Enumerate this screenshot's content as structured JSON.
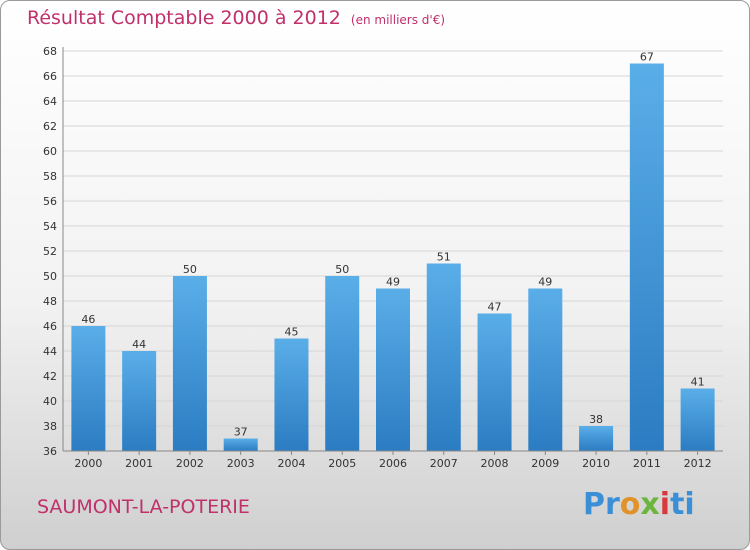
{
  "title": "Résultat Comptable 2000 à 2012",
  "subtitle": "(en milliers d'€)",
  "commune": "SAUMONT-LA-POTERIE",
  "logo": {
    "p1": "Pr",
    "p2": "o",
    "p3": "x",
    "p4": "i",
    "p5": "ti"
  },
  "colors": {
    "title": "#c0306a",
    "bar_top": "#5aaee8",
    "bar_bottom": "#2b7cc2"
  },
  "chart_data": {
    "type": "bar",
    "categories": [
      "2000",
      "2001",
      "2002",
      "2003",
      "2004",
      "2005",
      "2006",
      "2007",
      "2008",
      "2009",
      "2010",
      "2011",
      "2012"
    ],
    "values": [
      46,
      44,
      50,
      37,
      45,
      50,
      49,
      51,
      47,
      49,
      38,
      67,
      41
    ],
    "ylim": [
      36,
      68
    ],
    "yticks": [
      36,
      38,
      40,
      42,
      44,
      46,
      48,
      50,
      52,
      54,
      56,
      58,
      60,
      62,
      64,
      66,
      68
    ],
    "grid": true
  }
}
